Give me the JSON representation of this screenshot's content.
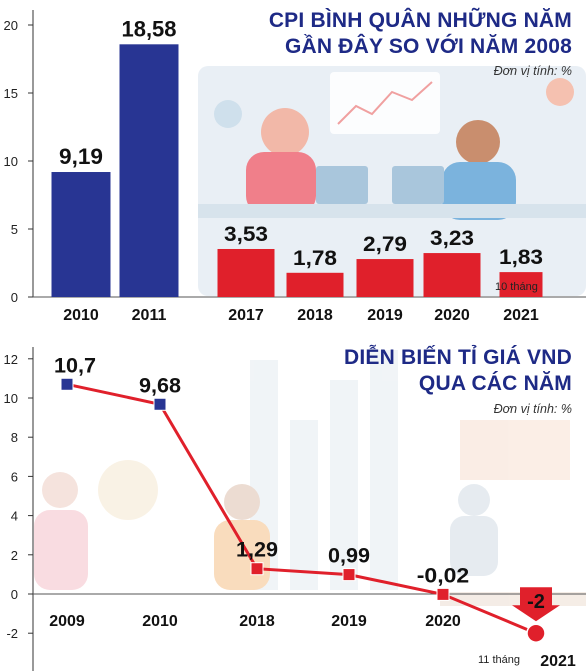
{
  "colors": {
    "navy": "#283593",
    "red": "#e0202b",
    "title": "#1e2a86",
    "axis": "#333333",
    "background_art": "#e6edf3"
  },
  "chart_data": [
    {
      "type": "bar",
      "title": "CPI BÌNH QUÂN NHỮNG NĂM GẦN ĐÂY SO VỚI NĂM 2008",
      "title_lines": [
        "CPI BÌNH QUÂN NHỮNG NĂM",
        "GẦN ĐÂY SO VỚI NĂM 2008"
      ],
      "unit": "Đơn vị tính: %",
      "categories": [
        "2010",
        "2011",
        "2017",
        "2018",
        "2019",
        "2020",
        "2021"
      ],
      "values": [
        9.19,
        18.58,
        3.53,
        1.78,
        2.79,
        3.23,
        1.83
      ],
      "value_labels": [
        "9,19",
        "18,58",
        "3,53",
        "1,78",
        "2,79",
        "3,23",
        "1,83"
      ],
      "bar_colors": [
        "#283593",
        "#283593",
        "#e0202b",
        "#e0202b",
        "#e0202b",
        "#e0202b",
        "#e0202b"
      ],
      "note_2021": "10 tháng",
      "ylim": [
        0,
        20
      ],
      "yticks": [
        "0",
        "5",
        "10",
        "15",
        "20"
      ],
      "xlabel": "",
      "ylabel": ""
    },
    {
      "type": "line",
      "title": "DIỄN BIẾN TỈ GIÁ VND QUA CÁC NĂM",
      "title_lines": [
        "DIỄN BIẾN TỈ GIÁ VND",
        "QUA CÁC NĂM"
      ],
      "unit": "Đơn vị tính: %",
      "x": [
        "2009",
        "2010",
        "2018",
        "2019",
        "2020",
        "2021"
      ],
      "values": [
        10.7,
        9.68,
        1.29,
        0.99,
        -0.02,
        -2
      ],
      "value_labels": [
        "10,7",
        "9,68",
        "1,29",
        "0,99",
        "-0,02",
        "-2"
      ],
      "note_2021": "11 tháng",
      "ylim": [
        -2,
        12
      ],
      "yticks": [
        "-2",
        "0",
        "2",
        "4",
        "6",
        "8",
        "10",
        "12"
      ],
      "xlabel": "",
      "ylabel": ""
    }
  ]
}
